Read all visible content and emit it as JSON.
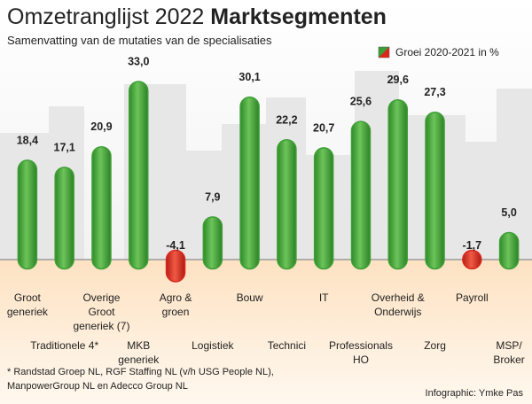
{
  "chart_data": {
    "type": "bar",
    "title": "Omzetranglijst 2022",
    "title_emphasis": "Marktsegmenten",
    "subtitle": "Samenvatting van de mutaties van de specialisaties",
    "legend": "Groei 2020-2021 in %",
    "categories": [
      "Groot\ngeneriek",
      "Traditionele 4*",
      "Overige\nGroot\ngeneriek (7)",
      "MKB\ngeneriek",
      "Agro &\ngroen",
      "Logistiek",
      "Bouw",
      "Technici",
      "IT",
      "Professionals\nHO",
      "Overheid &\nOnderwijs",
      "Zorg",
      "Payroll",
      "MSP/\nBroker"
    ],
    "values": [
      18.4,
      17.1,
      20.9,
      33.0,
      -4.1,
      7.9,
      30.1,
      22.2,
      20.7,
      25.6,
      29.6,
      27.3,
      -1.7,
      5.0
    ],
    "value_labels": [
      "18,4",
      "17,1",
      "20,9",
      "33,0",
      "-4,1",
      "7,9",
      "30,1",
      "22,2",
      "20,7",
      "25,6",
      "29,6",
      "27,3",
      "-1,7",
      "5,0"
    ],
    "color": "#3d9e34",
    "negative_color": "#d8281e",
    "footnote": "* Randstad Groep NL, RGF Staffing NL (v/h USG People NL),\nManpowerGroup NL en Adecco Group NL",
    "credit": "Infographic: Ymke Pas"
  }
}
